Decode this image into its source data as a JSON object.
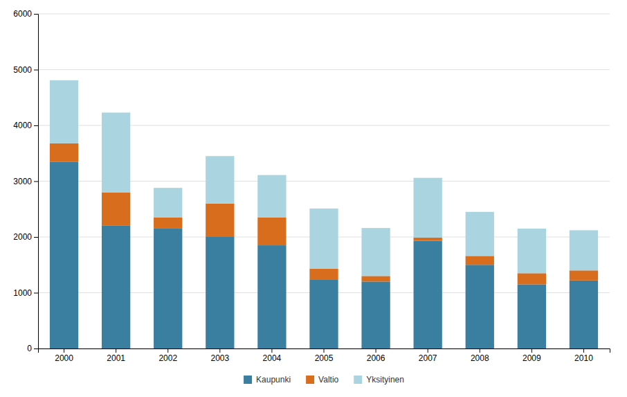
{
  "chart_data": {
    "type": "bar",
    "stacked": true,
    "categories": [
      "2000",
      "2001",
      "2002",
      "2003",
      "2004",
      "2005",
      "2006",
      "2007",
      "2008",
      "2009",
      "2010"
    ],
    "series": [
      {
        "name": "Kaupunki",
        "color": "#3a7f9f",
        "values": [
          3350,
          2200,
          2150,
          2000,
          1850,
          1230,
          1200,
          1930,
          1500,
          1150,
          1220
        ]
      },
      {
        "name": "Valtio",
        "color": "#d96d1e",
        "values": [
          330,
          600,
          200,
          600,
          500,
          200,
          100,
          60,
          160,
          200,
          180
        ]
      },
      {
        "name": "Yksityinen",
        "color": "#aad4e0",
        "values": [
          1130,
          1430,
          530,
          850,
          760,
          1080,
          860,
          1070,
          790,
          800,
          720
        ]
      }
    ],
    "ylim": [
      0,
      6000
    ],
    "yticks": [
      0,
      1000,
      2000,
      3000,
      4000,
      5000,
      6000
    ],
    "grid": true,
    "legend": "bottom"
  }
}
